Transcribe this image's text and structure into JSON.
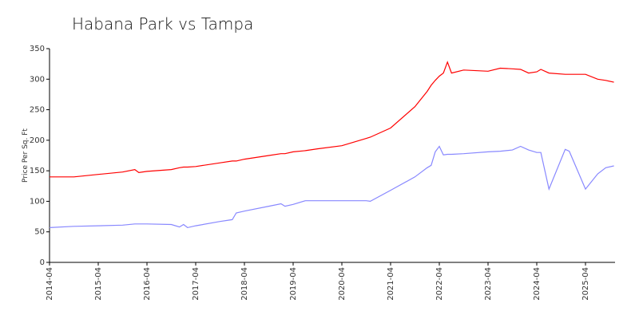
{
  "chart_data": {
    "type": "line",
    "title": "Habana Park vs Tampa",
    "y_label": "Price Per Sq. Ft",
    "x": [
      "2014-04",
      "2014-10",
      "2015-04",
      "2015-10",
      "2016-01",
      "2016-02",
      "2016-04",
      "2016-10",
      "2016-12",
      "2017-01",
      "2017-02",
      "2017-04",
      "2017-10",
      "2018-01",
      "2018-02",
      "2018-04",
      "2018-10",
      "2019-01",
      "2019-02",
      "2019-04",
      "2019-07",
      "2019-10",
      "2020-04",
      "2020-10",
      "2020-11",
      "2021-04",
      "2021-10",
      "2022-01",
      "2022-02",
      "2022-03",
      "2022-04",
      "2022-05",
      "2022-06",
      "2022-07",
      "2022-10",
      "2023-04",
      "2023-07",
      "2023-10",
      "2023-12",
      "2024-02",
      "2024-04",
      "2024-05",
      "2024-07",
      "2024-11",
      "2024-12",
      "2025-04",
      "2025-07",
      "2025-09",
      "2025-11"
    ],
    "series": [
      {
        "color": "#ff0000",
        "values": [
          140,
          140,
          144,
          148,
          152,
          147,
          149,
          152,
          155,
          156,
          156,
          157,
          163,
          166,
          166,
          169,
          175,
          178,
          178,
          181,
          183,
          186,
          191,
          203,
          205,
          220,
          255,
          280,
          290,
          298,
          305,
          310,
          328,
          310,
          315,
          313,
          318,
          317,
          316,
          310,
          312,
          316,
          310,
          308,
          308,
          308,
          300,
          298,
          295
        ]
      },
      {
        "color": "#8888ff",
        "values": [
          57,
          59,
          60,
          61,
          63,
          63,
          63,
          62,
          58,
          62,
          57,
          60,
          67,
          70,
          81,
          84,
          92,
          96,
          92,
          95,
          101,
          101,
          101,
          101,
          100,
          118,
          140,
          155,
          159,
          181,
          190,
          176,
          177,
          177,
          178,
          181,
          182,
          184,
          190,
          184,
          180,
          180,
          120,
          185,
          182,
          120,
          145,
          155,
          158
        ]
      }
    ],
    "xticks": [
      "2014-04",
      "2015-04",
      "2016-04",
      "2017-04",
      "2018-04",
      "2019-04",
      "2020-04",
      "2021-04",
      "2022-04",
      "2023-04",
      "2024-04",
      "2025-04"
    ],
    "ylim": [
      0,
      350
    ],
    "yticks": [
      0,
      50,
      100,
      150,
      200,
      250,
      300,
      350
    ],
    "grid": false
  }
}
